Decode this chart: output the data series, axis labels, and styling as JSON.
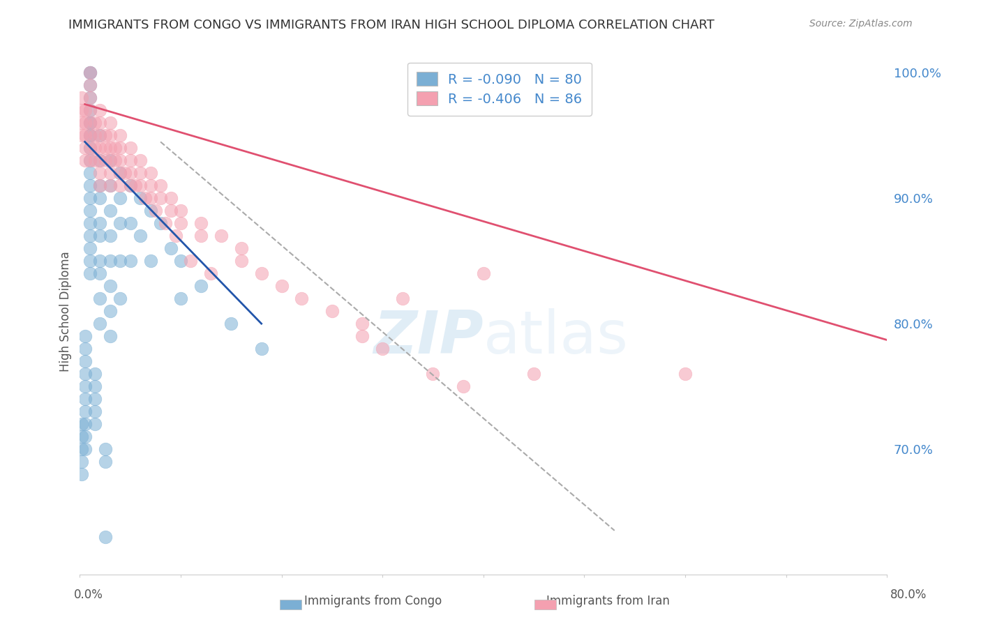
{
  "title": "IMMIGRANTS FROM CONGO VS IMMIGRANTS FROM IRAN HIGH SCHOOL DIPLOMA CORRELATION CHART",
  "source": "Source: ZipAtlas.com",
  "ylabel": "High School Diploma",
  "right_yticks": [
    "100.0%",
    "90.0%",
    "80.0%",
    "70.0%"
  ],
  "right_ytick_vals": [
    1.0,
    0.9,
    0.8,
    0.7
  ],
  "legend_congo": "R = -0.090   N = 80",
  "legend_iran": "R = -0.406   N = 86",
  "congo_color": "#7bafd4",
  "iran_color": "#f4a0b0",
  "congo_line_color": "#2255aa",
  "iran_line_color": "#e05070",
  "dashed_line_color": "#aaaaaa",
  "watermark_zip": "ZIP",
  "watermark_atlas": "atlas",
  "background_color": "#ffffff",
  "grid_color": "#dddddd",
  "title_color": "#333333",
  "right_axis_color": "#4488cc",
  "xlim": [
    0.0,
    0.8
  ],
  "ylim": [
    0.6,
    1.02
  ],
  "congo_scatter_x": [
    0.01,
    0.01,
    0.01,
    0.01,
    0.01,
    0.01,
    0.01,
    0.01,
    0.01,
    0.01,
    0.01,
    0.01,
    0.01,
    0.01,
    0.01,
    0.01,
    0.01,
    0.01,
    0.01,
    0.01,
    0.02,
    0.02,
    0.02,
    0.02,
    0.02,
    0.02,
    0.02,
    0.02,
    0.02,
    0.02,
    0.03,
    0.03,
    0.03,
    0.03,
    0.03,
    0.03,
    0.03,
    0.03,
    0.04,
    0.04,
    0.04,
    0.04,
    0.04,
    0.05,
    0.05,
    0.05,
    0.06,
    0.06,
    0.07,
    0.07,
    0.08,
    0.09,
    0.1,
    0.1,
    0.12,
    0.15,
    0.18,
    0.002,
    0.002,
    0.002,
    0.002,
    0.002,
    0.005,
    0.005,
    0.005,
    0.005,
    0.005,
    0.005,
    0.005,
    0.005,
    0.005,
    0.005,
    0.015,
    0.015,
    0.015,
    0.015,
    0.015,
    0.025,
    0.025,
    0.025
  ],
  "congo_scatter_y": [
    1.0,
    1.0,
    0.99,
    0.98,
    0.97,
    0.96,
    0.96,
    0.95,
    0.95,
    0.94,
    0.93,
    0.92,
    0.91,
    0.9,
    0.89,
    0.88,
    0.87,
    0.86,
    0.85,
    0.84,
    0.95,
    0.93,
    0.91,
    0.9,
    0.88,
    0.87,
    0.85,
    0.84,
    0.82,
    0.8,
    0.93,
    0.91,
    0.89,
    0.87,
    0.85,
    0.83,
    0.81,
    0.79,
    0.92,
    0.9,
    0.88,
    0.85,
    0.82,
    0.91,
    0.88,
    0.85,
    0.9,
    0.87,
    0.89,
    0.85,
    0.88,
    0.86,
    0.85,
    0.82,
    0.83,
    0.8,
    0.78,
    0.72,
    0.71,
    0.7,
    0.69,
    0.68,
    0.79,
    0.78,
    0.77,
    0.76,
    0.75,
    0.74,
    0.73,
    0.72,
    0.71,
    0.7,
    0.76,
    0.75,
    0.74,
    0.73,
    0.72,
    0.7,
    0.69,
    0.63
  ],
  "iran_scatter_x": [
    0.01,
    0.01,
    0.01,
    0.01,
    0.01,
    0.01,
    0.01,
    0.01,
    0.02,
    0.02,
    0.02,
    0.02,
    0.02,
    0.02,
    0.02,
    0.03,
    0.03,
    0.03,
    0.03,
    0.03,
    0.03,
    0.04,
    0.04,
    0.04,
    0.04,
    0.04,
    0.05,
    0.05,
    0.05,
    0.05,
    0.06,
    0.06,
    0.06,
    0.07,
    0.07,
    0.07,
    0.08,
    0.08,
    0.09,
    0.09,
    0.1,
    0.1,
    0.12,
    0.12,
    0.14,
    0.16,
    0.16,
    0.18,
    0.2,
    0.22,
    0.25,
    0.28,
    0.28,
    0.3,
    0.32,
    0.35,
    0.38,
    0.4,
    0.45,
    0.6,
    0.002,
    0.002,
    0.002,
    0.002,
    0.005,
    0.005,
    0.005,
    0.005,
    0.005,
    0.015,
    0.015,
    0.015,
    0.015,
    0.025,
    0.025,
    0.025,
    0.035,
    0.035,
    0.045,
    0.055,
    0.065,
    0.075,
    0.085,
    0.095,
    0.11,
    0.13
  ],
  "iran_scatter_y": [
    1.0,
    0.99,
    0.98,
    0.97,
    0.96,
    0.95,
    0.94,
    0.93,
    0.97,
    0.96,
    0.95,
    0.94,
    0.93,
    0.92,
    0.91,
    0.96,
    0.95,
    0.94,
    0.93,
    0.92,
    0.91,
    0.95,
    0.94,
    0.93,
    0.92,
    0.91,
    0.94,
    0.93,
    0.92,
    0.91,
    0.93,
    0.92,
    0.91,
    0.92,
    0.91,
    0.9,
    0.91,
    0.9,
    0.9,
    0.89,
    0.89,
    0.88,
    0.88,
    0.87,
    0.87,
    0.86,
    0.85,
    0.84,
    0.83,
    0.82,
    0.81,
    0.8,
    0.79,
    0.78,
    0.82,
    0.76,
    0.75,
    0.84,
    0.76,
    0.76,
    0.98,
    0.97,
    0.96,
    0.95,
    0.97,
    0.96,
    0.95,
    0.94,
    0.93,
    0.96,
    0.95,
    0.94,
    0.93,
    0.95,
    0.94,
    0.93,
    0.94,
    0.93,
    0.92,
    0.91,
    0.9,
    0.89,
    0.88,
    0.87,
    0.85,
    0.84
  ],
  "congo_line_x": [
    0.005,
    0.18
  ],
  "congo_line_y": [
    0.945,
    0.8
  ],
  "iran_line_x": [
    0.005,
    0.8
  ],
  "iran_line_y": [
    0.975,
    0.787
  ],
  "dashed_line_x": [
    0.08,
    0.53
  ],
  "dashed_line_y": [
    0.945,
    0.635
  ]
}
